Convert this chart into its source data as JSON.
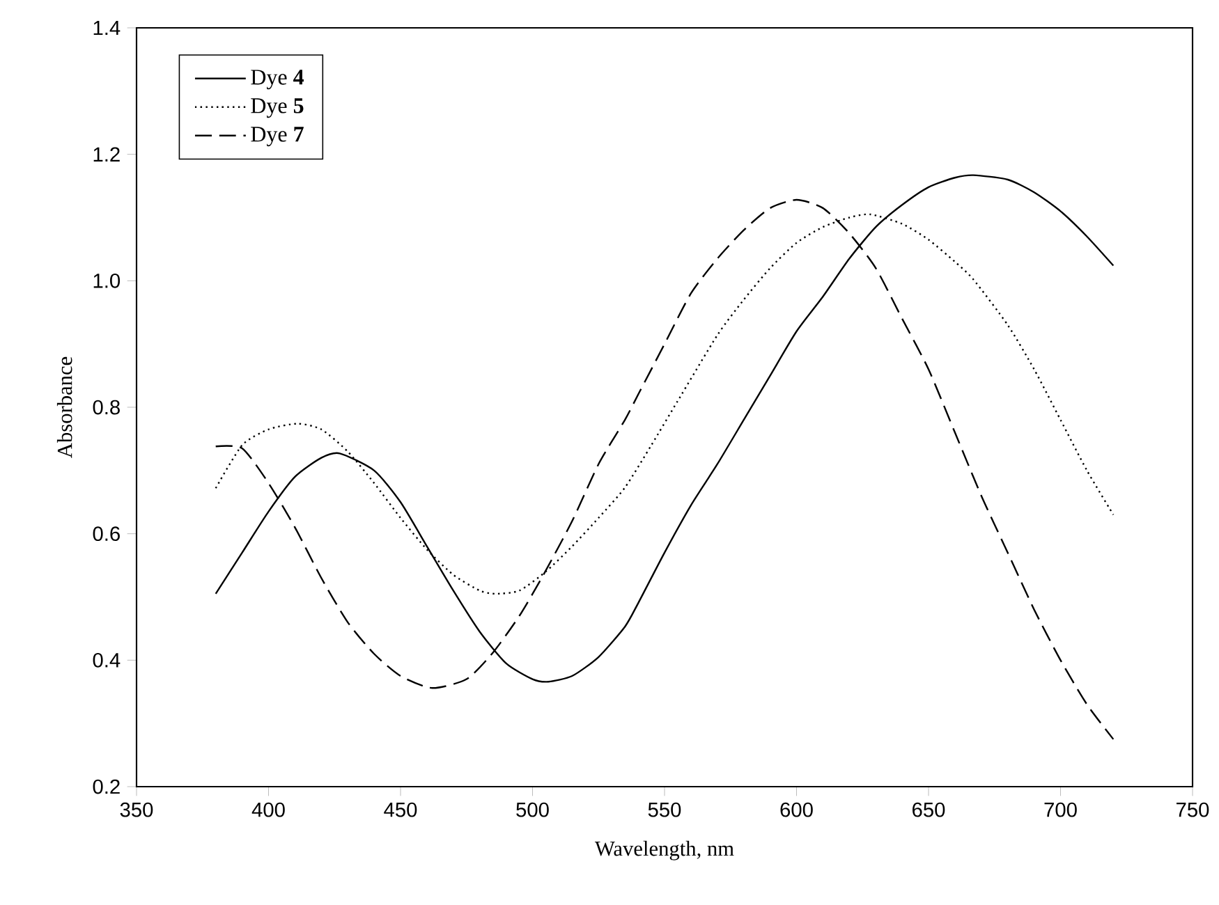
{
  "chart_data": {
    "type": "line",
    "xlabel": "Wavelength, nm",
    "ylabel": "Absorbance",
    "xlim": [
      350,
      750
    ],
    "xticks": [
      350,
      400,
      450,
      500,
      550,
      600,
      650,
      700,
      750
    ],
    "ylim": [
      0.2,
      1.4
    ],
    "yticks": [
      0.2,
      0.4,
      0.6,
      0.8,
      {
        "value": 1.0,
        "label": "1.0"
      },
      1.2,
      1.4
    ],
    "legend": "top left",
    "marker": "none",
    "series": [
      {
        "name": "Dye **4**",
        "color": "#000000",
        "line_style": "solid",
        "x": [
          380,
          390,
          400,
          410,
          420,
          427,
          440,
          450,
          460,
          470,
          480,
          490,
          500,
          506,
          515,
          525,
          535,
          540,
          550,
          560,
          570,
          580,
          590,
          600,
          610,
          620,
          630,
          640,
          650,
          660,
          667,
          680,
          690,
          700,
          710,
          720
        ],
        "values": [
          0.505,
          0.57,
          0.635,
          0.69,
          0.72,
          0.727,
          0.7,
          0.65,
          0.58,
          0.51,
          0.445,
          0.395,
          0.37,
          0.366,
          0.375,
          0.405,
          0.453,
          0.49,
          0.57,
          0.645,
          0.71,
          0.78,
          0.85,
          0.92,
          0.975,
          1.035,
          1.085,
          1.12,
          1.148,
          1.163,
          1.167,
          1.16,
          1.14,
          1.11,
          1.07,
          1.024
        ]
      },
      {
        "name": "Dye **5**",
        "color": "#000000",
        "line_style": "dotted",
        "x": [
          380,
          390,
          400,
          411,
          420,
          430,
          440,
          450,
          460,
          470,
          480,
          486,
          495,
          505,
          515,
          525,
          535,
          545,
          555,
          570,
          580,
          590,
          600,
          610,
          620,
          628,
          640,
          650,
          660,
          667,
          680,
          690,
          700,
          710,
          720
        ],
        "values": [
          0.672,
          0.74,
          0.765,
          0.774,
          0.765,
          0.73,
          0.68,
          0.625,
          0.575,
          0.535,
          0.51,
          0.505,
          0.51,
          0.54,
          0.58,
          0.625,
          0.673,
          0.74,
          0.81,
          0.914,
          0.97,
          1.02,
          1.06,
          1.085,
          1.1,
          1.105,
          1.09,
          1.065,
          1.03,
          1.002,
          0.93,
          0.86,
          0.78,
          0.7,
          0.63
        ]
      },
      {
        "name": "Dye **7**",
        "color": "#000000",
        "line_style": "dashed",
        "x": [
          380,
          390,
          400,
          410,
          420,
          430,
          440,
          450,
          462,
          475,
          485,
          495,
          504,
          515,
          525,
          535,
          540,
          550,
          560,
          570,
          580,
          590,
          600,
          610,
          620,
          630,
          640,
          650,
          660,
          670,
          680,
          690,
          700,
          710,
          720
        ],
        "values": [
          0.738,
          0.735,
          0.68,
          0.61,
          0.53,
          0.46,
          0.41,
          0.375,
          0.356,
          0.37,
          0.412,
          0.47,
          0.534,
          0.62,
          0.71,
          0.78,
          0.82,
          0.9,
          0.98,
          1.035,
          1.08,
          1.115,
          1.128,
          1.115,
          1.075,
          1.02,
          0.94,
          0.86,
          0.76,
          0.66,
          0.57,
          0.48,
          0.4,
          0.33,
          0.275
        ]
      }
    ]
  }
}
